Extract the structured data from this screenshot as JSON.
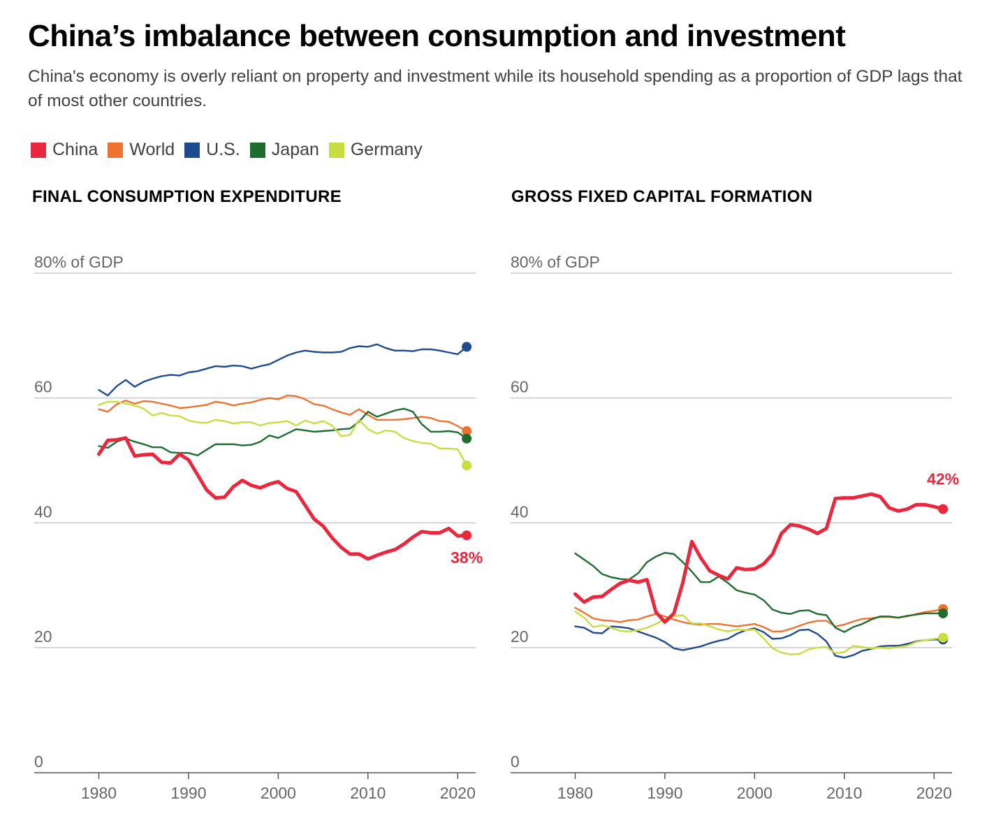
{
  "title": "China’s imbalance between consumption and investment",
  "subtitle": "China's economy is overly reliant on property and investment while its household spending as a proportion of GDP lags that of most other countries.",
  "legend": [
    {
      "name": "China",
      "color": "#e8283e"
    },
    {
      "name": "World",
      "color": "#ee7331"
    },
    {
      "name": "U.S.",
      "color": "#1f4a8c"
    },
    {
      "name": "Japan",
      "color": "#1f6b30"
    },
    {
      "name": "Germany",
      "color": "#c9dc41"
    }
  ],
  "chart_data": [
    {
      "type": "line",
      "title": "FINAL CONSUMPTION EXPENDITURE",
      "ylabel": "% of GDP",
      "ylim": [
        0,
        80
      ],
      "xlim": [
        1972.8,
        2022
      ],
      "yticks": [
        "80% of GDP",
        "60",
        "40",
        "20",
        "0"
      ],
      "xticks": [
        "1980",
        "1990",
        "2000",
        "2010",
        "2020"
      ],
      "end_label": {
        "series": "China",
        "text": "38%"
      },
      "x": [
        1980,
        1981,
        1982,
        1983,
        1984,
        1985,
        1986,
        1987,
        1988,
        1989,
        1990,
        1991,
        1992,
        1993,
        1994,
        1995,
        1996,
        1997,
        1998,
        1999,
        2000,
        2001,
        2002,
        2003,
        2004,
        2005,
        2006,
        2007,
        2008,
        2009,
        2010,
        2011,
        2012,
        2013,
        2014,
        2015,
        2016,
        2017,
        2018,
        2019,
        2020,
        2021
      ],
      "series": [
        {
          "name": "China",
          "values": [
            51,
            53.2,
            53.3,
            53.6,
            50.7,
            50.9,
            51,
            49.7,
            49.6,
            51,
            50.1,
            47.7,
            45.3,
            44,
            44.1,
            45.8,
            46.8,
            46,
            45.6,
            46.2,
            46.6,
            45.5,
            45,
            42.8,
            40.6,
            39.5,
            37.6,
            36.1,
            35,
            35,
            34.2,
            34.8,
            35.3,
            35.7,
            36.6,
            37.7,
            38.6,
            38.4,
            38.4,
            39.1,
            37.9,
            38
          ]
        },
        {
          "name": "World",
          "values": [
            58.2,
            57.8,
            59,
            59.6,
            59.1,
            59.5,
            59.4,
            59.1,
            58.8,
            58.4,
            58.5,
            58.7,
            58.9,
            59.4,
            59.2,
            58.8,
            59.1,
            59.3,
            59.7,
            60,
            59.8,
            60.4,
            60.3,
            59.8,
            59,
            58.8,
            58.2,
            57.7,
            57.3,
            58.2,
            57.3,
            56.5,
            56.5,
            56.5,
            56.6,
            56.8,
            57,
            56.8,
            56.3,
            56.2,
            55.5,
            54.7
          ]
        },
        {
          "name": "U.S.",
          "values": [
            61.3,
            60.4,
            61.9,
            62.9,
            61.8,
            62.6,
            63.1,
            63.5,
            63.7,
            63.6,
            64.1,
            64.3,
            64.7,
            65.1,
            65,
            65.2,
            65.1,
            64.7,
            65.1,
            65.4,
            66.1,
            66.8,
            67.3,
            67.6,
            67.4,
            67.3,
            67.3,
            67.4,
            68,
            68.3,
            68.2,
            68.6,
            68,
            67.6,
            67.6,
            67.5,
            67.8,
            67.8,
            67.6,
            67.3,
            67,
            68.2
          ]
        },
        {
          "name": "Japan",
          "values": [
            52.3,
            52,
            53,
            53.5,
            53,
            52.6,
            52.1,
            52.1,
            51.3,
            51.2,
            51.2,
            50.8,
            51.7,
            52.6,
            52.6,
            52.6,
            52.4,
            52.5,
            53,
            54,
            53.6,
            54.3,
            55,
            54.8,
            54.6,
            54.7,
            54.8,
            55,
            55.1,
            56.2,
            57.8,
            57,
            57.5,
            58,
            58.3,
            57.8,
            55.8,
            54.6,
            54.6,
            54.7,
            54.5,
            53.5
          ]
        },
        {
          "name": "Germany",
          "values": [
            58.9,
            59.4,
            59.4,
            59.1,
            58.8,
            58.3,
            57.2,
            57.6,
            57.2,
            57.1,
            56.4,
            56.1,
            56,
            56.5,
            56.3,
            55.9,
            56.1,
            56.1,
            55.6,
            56,
            56.1,
            56.3,
            55.6,
            56.4,
            55.9,
            56.3,
            55.6,
            53.9,
            54.1,
            56.5,
            55,
            54.3,
            54.8,
            54.6,
            53.6,
            53.1,
            52.8,
            52.7,
            51.9,
            51.9,
            51.8,
            49.2
          ]
        }
      ]
    },
    {
      "type": "line",
      "title": "GROSS FIXED CAPITAL FORMATION",
      "ylabel": "% of GDP",
      "ylim": [
        0,
        80
      ],
      "xlim": [
        1972.8,
        2022
      ],
      "yticks": [
        "80% of GDP",
        "60",
        "40",
        "20",
        "0"
      ],
      "xticks": [
        "1980",
        "1990",
        "2000",
        "2010",
        "2020"
      ],
      "end_label": {
        "series": "China",
        "text": "42%"
      },
      "x": [
        1980,
        1981,
        1982,
        1983,
        1984,
        1985,
        1986,
        1987,
        1988,
        1989,
        1990,
        1991,
        1992,
        1993,
        1994,
        1995,
        1996,
        1997,
        1998,
        1999,
        2000,
        2001,
        2002,
        2003,
        2004,
        2005,
        2006,
        2007,
        2008,
        2009,
        2010,
        2011,
        2012,
        2013,
        2014,
        2015,
        2016,
        2017,
        2018,
        2019,
        2020,
        2021
      ],
      "series": [
        {
          "name": "China",
          "values": [
            28.6,
            27.3,
            28.1,
            28.2,
            29.3,
            30.3,
            30.8,
            30.5,
            30.9,
            25.7,
            24.1,
            25.5,
            30.4,
            37,
            34.4,
            32.3,
            31.6,
            31,
            32.8,
            32.5,
            32.6,
            33.4,
            35,
            38.3,
            39.7,
            39.5,
            39,
            38.3,
            39.1,
            43.9,
            44,
            44,
            44.3,
            44.6,
            44.2,
            42.4,
            41.9,
            42.2,
            42.9,
            42.9,
            42.6,
            42.2
          ]
        },
        {
          "name": "World",
          "values": [
            26.4,
            25.6,
            24.7,
            24.4,
            24.3,
            24.1,
            24.4,
            24.5,
            25,
            25.4,
            25,
            24.5,
            24.1,
            23.8,
            23.7,
            23.8,
            23.8,
            23.6,
            23.4,
            23.6,
            23.8,
            23.3,
            22.6,
            22.6,
            23,
            23.5,
            24,
            24.3,
            24.3,
            23.4,
            23.7,
            24.2,
            24.6,
            24.7,
            24.9,
            24.9,
            24.8,
            25,
            25.4,
            25.7,
            25.9,
            26.2
          ]
        },
        {
          "name": "U.S.",
          "values": [
            23.4,
            23.2,
            22.4,
            22.3,
            23.4,
            23.3,
            23.1,
            22.6,
            22.1,
            21.6,
            20.9,
            19.9,
            19.6,
            19.9,
            20.2,
            20.7,
            21.1,
            21.4,
            22.2,
            22.8,
            23.1,
            22.5,
            21.4,
            21.5,
            22,
            22.8,
            22.9,
            22.2,
            21,
            18.7,
            18.4,
            18.8,
            19.5,
            19.8,
            20.2,
            20.3,
            20.3,
            20.6,
            21,
            21.2,
            21.3,
            21.3
          ]
        },
        {
          "name": "Japan",
          "values": [
            35.1,
            34.1,
            33.1,
            31.8,
            31.3,
            31,
            30.9,
            31.9,
            33.7,
            34.6,
            35.2,
            35,
            33.7,
            32.2,
            30.5,
            30.5,
            31.4,
            30.4,
            29.2,
            28.8,
            28.5,
            27.6,
            26.1,
            25.6,
            25.4,
            25.9,
            26,
            25.4,
            25.2,
            23.2,
            22.5,
            23.3,
            23.8,
            24.5,
            25,
            25,
            24.8,
            25.1,
            25.3,
            25.5,
            25.5,
            25.5
          ]
        },
        {
          "name": "Germany",
          "values": [
            25.8,
            24.8,
            23.3,
            23.6,
            23.2,
            22.7,
            22.6,
            22.8,
            23.2,
            23.8,
            24.6,
            25,
            25.2,
            23.9,
            23.9,
            23.4,
            22.9,
            22.6,
            22.9,
            22.8,
            22.9,
            21.5,
            19.9,
            19.2,
            18.9,
            19,
            19.7,
            20,
            20.1,
            19.1,
            19.3,
            20.3,
            20.1,
            19.9,
            20,
            19.9,
            20.1,
            20.3,
            20.9,
            21.2,
            21.4,
            21.6
          ]
        }
      ]
    }
  ]
}
